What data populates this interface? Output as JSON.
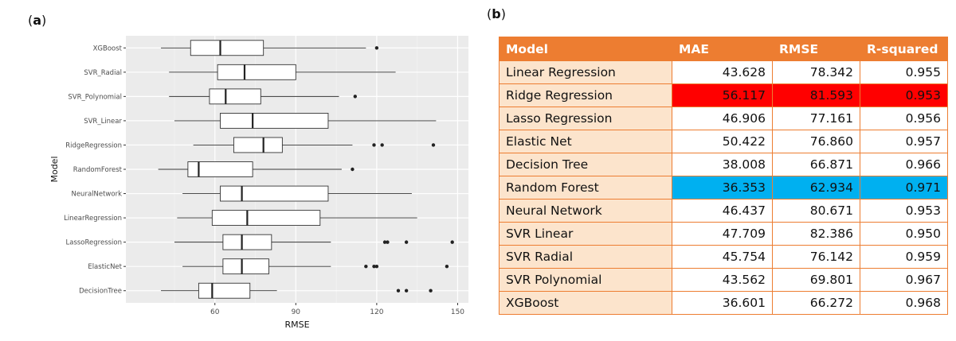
{
  "panel_a_label": "a",
  "panel_b_label": "b",
  "colors": {
    "header_bg": "#ed7d31",
    "model_col_bg": "#fce4cc",
    "highlight_worst": "#ff0000",
    "highlight_best": "#00b0f0",
    "plot_bg": "#ebebeb"
  },
  "chart_data": [
    {
      "type": "boxplot",
      "title": "",
      "xlabel": "RMSE",
      "ylabel": "Model",
      "xlim": [
        27,
        154
      ],
      "xticks": [
        60,
        90,
        120,
        150
      ],
      "grid": true,
      "categories": [
        "XGBoost",
        "SVR_Radial",
        "SVR_Polynomial",
        "SVR_Linear",
        "RidgeRegression",
        "RandomForest",
        "NeuralNetwork",
        "LinearRegression",
        "LassoRegression",
        "ElasticNet",
        "DecisionTree"
      ],
      "boxes": [
        {
          "min": 40,
          "q1": 51,
          "median": 62,
          "q3": 78,
          "max": 116,
          "outliers": [
            120
          ]
        },
        {
          "min": 43,
          "q1": 61,
          "median": 71,
          "q3": 90,
          "max": 127,
          "outliers": []
        },
        {
          "min": 43,
          "q1": 58,
          "median": 64,
          "q3": 77,
          "max": 106,
          "outliers": [
            112
          ]
        },
        {
          "min": 45,
          "q1": 62,
          "median": 74,
          "q3": 102,
          "max": 142,
          "outliers": []
        },
        {
          "min": 52,
          "q1": 67,
          "median": 78,
          "q3": 85,
          "max": 111,
          "outliers": [
            119,
            122,
            141
          ]
        },
        {
          "min": 39,
          "q1": 50,
          "median": 54,
          "q3": 74,
          "max": 107,
          "outliers": [
            111
          ]
        },
        {
          "min": 48,
          "q1": 62,
          "median": 70,
          "q3": 102,
          "max": 133,
          "outliers": []
        },
        {
          "min": 46,
          "q1": 59,
          "median": 72,
          "q3": 99,
          "max": 135,
          "outliers": []
        },
        {
          "min": 45,
          "q1": 63,
          "median": 70,
          "q3": 81,
          "max": 103,
          "outliers": [
            123,
            124,
            131,
            148
          ]
        },
        {
          "min": 48,
          "q1": 63,
          "median": 70,
          "q3": 80,
          "max": 103,
          "outliers": [
            116,
            119,
            120,
            146
          ]
        },
        {
          "min": 40,
          "q1": 54,
          "median": 59,
          "q3": 73,
          "max": 83,
          "outliers": [
            128,
            131,
            140
          ]
        }
      ]
    },
    {
      "type": "table",
      "columns": [
        "Model",
        "MAE",
        "RMSE",
        "R-squared"
      ],
      "rows": [
        {
          "model": "Linear Regression",
          "mae": "43.628",
          "rmse": "78.342",
          "r2": "0.955",
          "highlight": ""
        },
        {
          "model": "Ridge Regression",
          "mae": "56.117",
          "rmse": "81.593",
          "r2": "0.953",
          "highlight": "red"
        },
        {
          "model": "Lasso Regression",
          "mae": "46.906",
          "rmse": "77.161",
          "r2": "0.956",
          "highlight": ""
        },
        {
          "model": "Elastic Net",
          "mae": "50.422",
          "rmse": "76.860",
          "r2": "0.957",
          "highlight": ""
        },
        {
          "model": "Decision Tree",
          "mae": "38.008",
          "rmse": "66.871",
          "r2": "0.966",
          "highlight": ""
        },
        {
          "model": "Random Forest",
          "mae": "36.353",
          "rmse": "62.934",
          "r2": "0.971",
          "highlight": "blue"
        },
        {
          "model": "Neural Network",
          "mae": "46.437",
          "rmse": "80.671",
          "r2": "0.953",
          "highlight": ""
        },
        {
          "model": "SVR Linear",
          "mae": "47.709",
          "rmse": "82.386",
          "r2": "0.950",
          "highlight": ""
        },
        {
          "model": "SVR Radial",
          "mae": "45.754",
          "rmse": "76.142",
          "r2": "0.959",
          "highlight": ""
        },
        {
          "model": "SVR Polynomial",
          "mae": "43.562",
          "rmse": "69.801",
          "r2": "0.967",
          "highlight": ""
        },
        {
          "model": "XGBoost",
          "mae": "36.601",
          "rmse": "66.272",
          "r2": "0.968",
          "highlight": ""
        }
      ]
    }
  ]
}
